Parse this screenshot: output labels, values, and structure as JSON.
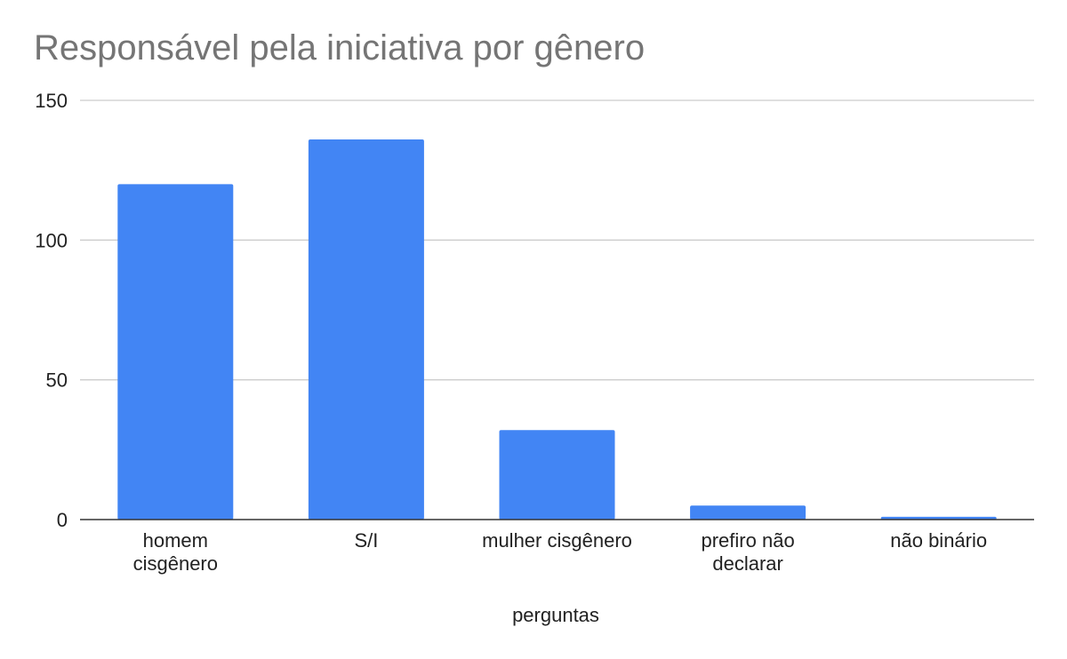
{
  "chart_data": {
    "type": "bar",
    "title": "Responsável pela iniciativa por gênero",
    "xlabel": "perguntas",
    "ylabel": "",
    "categories": [
      [
        "homem",
        "cisgênero"
      ],
      [
        "S/I"
      ],
      [
        "mulher cisgênero"
      ],
      [
        "prefiro não",
        "declarar"
      ],
      [
        "não binário"
      ]
    ],
    "values": [
      120,
      136,
      32,
      5,
      1
    ],
    "ylim": [
      0,
      150
    ],
    "yticks": [
      0,
      50,
      100,
      150
    ],
    "grid": true,
    "legend": "none",
    "bar_color": "#4285f4"
  }
}
